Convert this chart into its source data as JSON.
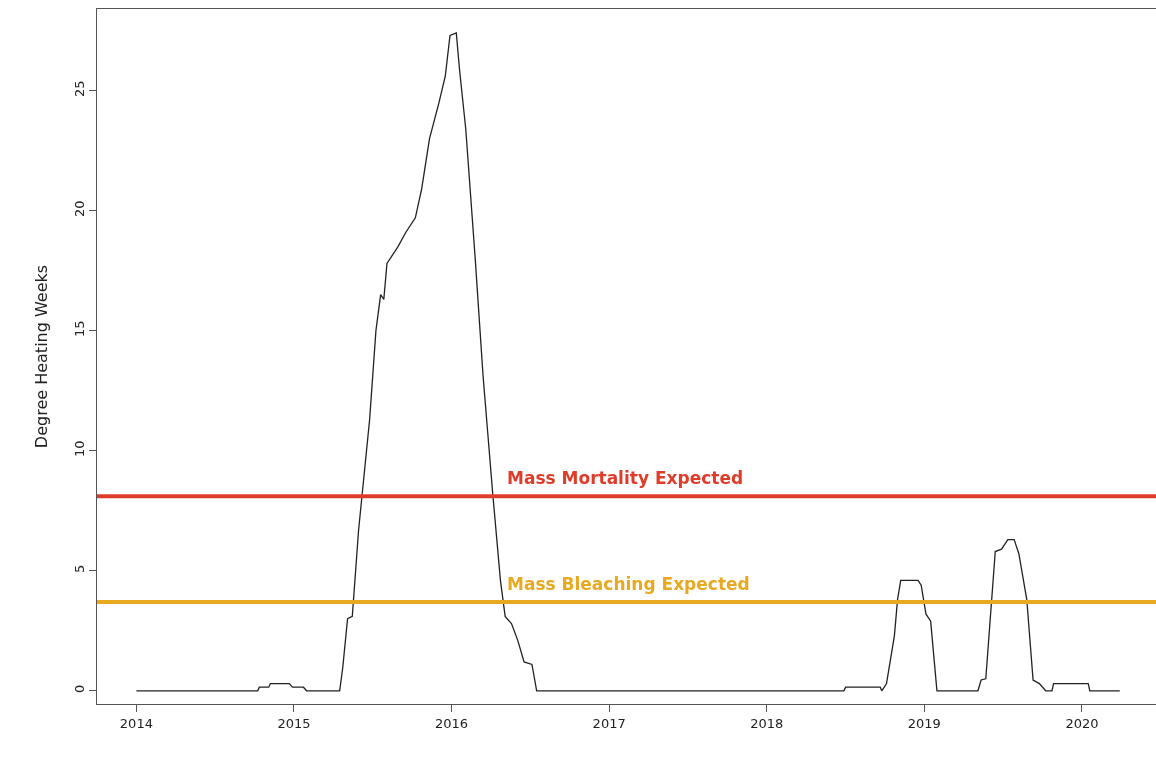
{
  "chart_data": {
    "type": "line",
    "ylabel": "Degree Heating Weeks",
    "xlim": [
      2013.75,
      2020.47
    ],
    "ylim": [
      -0.55,
      28.4
    ],
    "xticks": [
      2014,
      2015,
      2016,
      2017,
      2018,
      2019,
      2020
    ],
    "yticks": [
      0,
      5,
      10,
      15,
      20,
      25
    ],
    "grid": false,
    "marker": "none",
    "line_style": "solid",
    "series": [
      {
        "color": "#222222",
        "x": [
          2014.0,
          2014.77,
          2014.78,
          2014.84,
          2014.85,
          2014.97,
          2014.99,
          2015.06,
          2015.08,
          2015.29,
          2015.31,
          2015.34,
          2015.37,
          2015.41,
          2015.48,
          2015.52,
          2015.55,
          2015.57,
          2015.59,
          2015.66,
          2015.71,
          2015.77,
          2015.81,
          2015.86,
          2015.92,
          2015.96,
          2015.99,
          2016.03,
          2016.05,
          2016.09,
          2016.15,
          2016.2,
          2016.26,
          2016.31,
          2016.34,
          2016.38,
          2016.42,
          2016.46,
          2016.51,
          2016.54,
          2018.49,
          2018.5,
          2018.72,
          2018.73,
          2018.76,
          2018.79,
          2018.81,
          2018.83,
          2018.85,
          2018.96,
          2018.98,
          2019.01,
          2019.04,
          2019.08,
          2019.34,
          2019.36,
          2019.39,
          2019.45,
          2019.49,
          2019.53,
          2019.57,
          2019.6,
          2019.65,
          2019.69,
          2019.73,
          2019.77,
          2019.81,
          2019.82,
          2020.04,
          2020.05,
          2020.24
        ],
        "values": [
          0,
          0,
          0.15,
          0.15,
          0.3,
          0.3,
          0.15,
          0.15,
          0,
          0,
          1,
          3,
          3.1,
          6.7,
          11.3,
          15,
          16.5,
          16.3,
          17.8,
          18.5,
          19.1,
          19.7,
          20.9,
          23,
          24.5,
          25.6,
          27.3,
          27.4,
          25.9,
          23.4,
          18,
          13.1,
          8.3,
          4.6,
          3.1,
          2.8,
          2.1,
          1.2,
          1.1,
          0,
          0,
          0.15,
          0.15,
          0,
          0.3,
          1.5,
          2.3,
          3.8,
          4.6,
          4.6,
          4.4,
          3.2,
          2.9,
          0,
          0,
          0.45,
          0.5,
          5.8,
          5.9,
          6.3,
          6.3,
          5.7,
          3.8,
          0.45,
          0.3,
          0,
          0,
          0.3,
          0.3,
          0,
          0
        ]
      }
    ],
    "ref_lines": [
      {
        "axis": "y",
        "value": 8.1,
        "label": "Mass Mortality Expected",
        "color": "#e03c2a"
      },
      {
        "axis": "y",
        "value": 3.7,
        "label": "Mass Bleaching Expected",
        "color": "#e8a820"
      }
    ]
  }
}
